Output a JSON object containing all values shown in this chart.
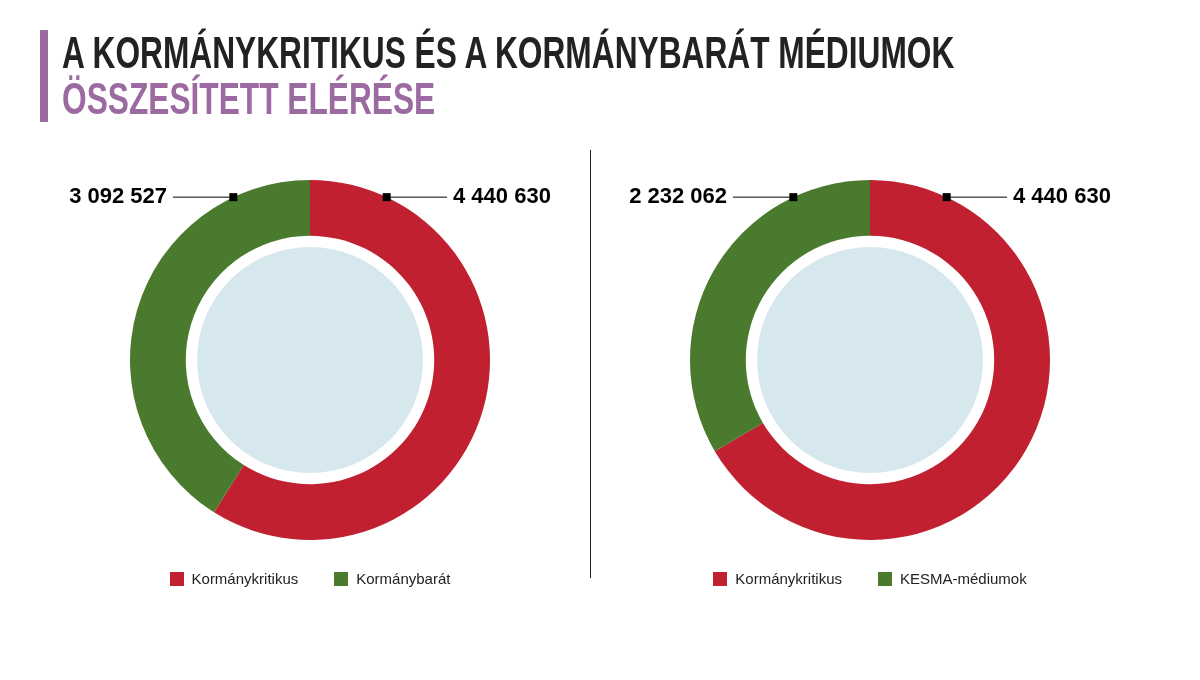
{
  "chart_data": [
    {
      "type": "donut",
      "title": "A KORMÁNYKRITIKUS ÉS A KORMÁNYBARÁT MÉDIUMOK",
      "subtitle": "ÖSSZESÍTETT ELÉRÉSE",
      "categories": [
        "Kormánykritikus",
        "Kormánybarát"
      ],
      "values": [
        4440630,
        3092527
      ],
      "value_labels": [
        "4 440 630",
        "3 092 527"
      ],
      "colors": [
        "#c0202f",
        "#4a7a2e"
      ],
      "legend": "bottom"
    },
    {
      "type": "donut",
      "categories": [
        "Kormánykritikus",
        "KESMA-médiumok"
      ],
      "values": [
        4440630,
        2232062
      ],
      "value_labels": [
        "4 440 630",
        "2 232 062"
      ],
      "colors": [
        "#c0202f",
        "#4a7a2e"
      ],
      "legend": "bottom"
    }
  ]
}
